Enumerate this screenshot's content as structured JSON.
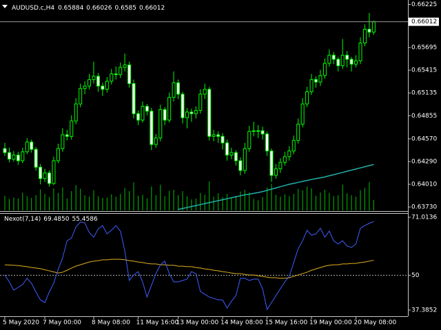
{
  "chart_data": [
    {
      "type": "candlestick",
      "symbol": "AUDUSD.c,H4",
      "categories": [
        "5 May 2020",
        null,
        null,
        null,
        null,
        null,
        null,
        null,
        null,
        "7 May 00:00",
        null,
        null,
        null,
        null,
        null,
        null,
        null,
        null,
        null,
        null,
        "8 May 08:00",
        null,
        null,
        null,
        null,
        null,
        null,
        null,
        null,
        null,
        "11 May 16:00",
        null,
        null,
        null,
        null,
        null,
        null,
        null,
        null,
        "13 May 00:00",
        null,
        null,
        null,
        null,
        null,
        null,
        null,
        null,
        null,
        "14 May 08:00",
        null,
        null,
        null,
        null,
        null,
        null,
        null,
        null,
        null,
        "15 May 16:00",
        null,
        null,
        null,
        null,
        null,
        null,
        null,
        null,
        null,
        "19 May 00:00",
        null,
        null,
        null,
        null,
        null,
        null,
        null,
        null,
        null,
        "20 May 08:00",
        null,
        null,
        null,
        null
      ],
      "candles": [
        [
          0.6445,
          0.6452,
          0.6436,
          0.644
        ],
        [
          0.644,
          0.6446,
          0.6428,
          0.6432
        ],
        [
          0.6432,
          0.6442,
          0.6429,
          0.6437
        ],
        [
          0.6437,
          0.6441,
          0.6425,
          0.643
        ],
        [
          0.643,
          0.6446,
          0.6427,
          0.6441
        ],
        [
          0.6441,
          0.6458,
          0.6438,
          0.6453
        ],
        [
          0.6453,
          0.6456,
          0.644,
          0.6444
        ],
        [
          0.6444,
          0.6447,
          0.6418,
          0.6422
        ],
        [
          0.6422,
          0.6426,
          0.6401,
          0.6408
        ],
        [
          0.6408,
          0.642,
          0.6404,
          0.6415
        ],
        [
          0.6415,
          0.6418,
          0.6398,
          0.6402
        ],
        [
          0.6402,
          0.6435,
          0.64,
          0.643
        ],
        [
          0.643,
          0.6451,
          0.6427,
          0.6445
        ],
        [
          0.6445,
          0.647,
          0.6441,
          0.6462
        ],
        [
          0.6462,
          0.6468,
          0.6455,
          0.646
        ],
        [
          0.646,
          0.6486,
          0.6456,
          0.6479
        ],
        [
          0.6479,
          0.6507,
          0.6475,
          0.65
        ],
        [
          0.65,
          0.6525,
          0.6496,
          0.6519
        ],
        [
          0.6519,
          0.6528,
          0.6512,
          0.6522
        ],
        [
          0.6522,
          0.6537,
          0.6518,
          0.653
        ],
        [
          0.653,
          0.6552,
          0.6525,
          0.6534
        ],
        [
          0.6534,
          0.6538,
          0.6515,
          0.6522
        ],
        [
          0.6522,
          0.6526,
          0.651,
          0.6518
        ],
        [
          0.6518,
          0.6533,
          0.6514,
          0.6528
        ],
        [
          0.6528,
          0.6543,
          0.6524,
          0.6537
        ],
        [
          0.6537,
          0.6546,
          0.653,
          0.6536
        ],
        [
          0.6536,
          0.6551,
          0.6532,
          0.6545
        ],
        [
          0.6545,
          0.6562,
          0.654,
          0.6548
        ],
        [
          0.6548,
          0.6552,
          0.652,
          0.6525
        ],
        [
          0.6525,
          0.653,
          0.6482,
          0.6488
        ],
        [
          0.6488,
          0.6492,
          0.6474,
          0.648
        ],
        [
          0.648,
          0.6503,
          0.6477,
          0.6497
        ],
        [
          0.6497,
          0.65,
          0.6486,
          0.6491
        ],
        [
          0.6491,
          0.6495,
          0.6443,
          0.645
        ],
        [
          0.645,
          0.6463,
          0.6446,
          0.6458
        ],
        [
          0.6458,
          0.6499,
          0.6454,
          0.6493
        ],
        [
          0.6493,
          0.6496,
          0.6474,
          0.648
        ],
        [
          0.648,
          0.6514,
          0.6477,
          0.6508
        ],
        [
          0.6508,
          0.654,
          0.6503,
          0.6526
        ],
        [
          0.6526,
          0.653,
          0.6506,
          0.6512
        ],
        [
          0.6512,
          0.6515,
          0.6476,
          0.6483
        ],
        [
          0.6483,
          0.6495,
          0.647,
          0.649
        ],
        [
          0.649,
          0.6494,
          0.6478,
          0.6488
        ],
        [
          0.6488,
          0.6497,
          0.6482,
          0.6492
        ],
        [
          0.6492,
          0.6518,
          0.6488,
          0.6512
        ],
        [
          0.6512,
          0.6525,
          0.6506,
          0.6518
        ],
        [
          0.6518,
          0.6521,
          0.6455,
          0.646
        ],
        [
          0.646,
          0.6468,
          0.6454,
          0.6462
        ],
        [
          0.6462,
          0.6466,
          0.6452,
          0.646
        ],
        [
          0.646,
          0.6464,
          0.6444,
          0.6452
        ],
        [
          0.6452,
          0.6456,
          0.643,
          0.6437
        ],
        [
          0.6437,
          0.6446,
          0.6432,
          0.644
        ],
        [
          0.644,
          0.6443,
          0.6424,
          0.643
        ],
        [
          0.643,
          0.6434,
          0.6412,
          0.6418
        ],
        [
          0.6418,
          0.6452,
          0.6414,
          0.6445
        ],
        [
          0.6445,
          0.6473,
          0.6441,
          0.6466
        ],
        [
          0.6466,
          0.6478,
          0.646,
          0.6467
        ],
        [
          0.6467,
          0.6474,
          0.6458,
          0.6467
        ],
        [
          0.6467,
          0.6472,
          0.6456,
          0.6463
        ],
        [
          0.6463,
          0.6466,
          0.6436,
          0.6442
        ],
        [
          0.6442,
          0.6445,
          0.6404,
          0.6412
        ],
        [
          0.6412,
          0.6426,
          0.6408,
          0.642
        ],
        [
          0.642,
          0.6433,
          0.6415,
          0.6428
        ],
        [
          0.6428,
          0.6441,
          0.6424,
          0.6435
        ],
        [
          0.6435,
          0.6448,
          0.643,
          0.6442
        ],
        [
          0.6442,
          0.6461,
          0.6438,
          0.6455
        ],
        [
          0.6455,
          0.6482,
          0.6451,
          0.6475
        ],
        [
          0.6475,
          0.6507,
          0.6471,
          0.65
        ],
        [
          0.65,
          0.6521,
          0.6496,
          0.6515
        ],
        [
          0.6515,
          0.6537,
          0.6511,
          0.653
        ],
        [
          0.653,
          0.6534,
          0.652,
          0.6527
        ],
        [
          0.6527,
          0.6542,
          0.6522,
          0.6535
        ],
        [
          0.6535,
          0.6556,
          0.6531,
          0.655
        ],
        [
          0.655,
          0.6567,
          0.6546,
          0.656
        ],
        [
          0.656,
          0.6564,
          0.6549,
          0.6555
        ],
        [
          0.6555,
          0.6558,
          0.654,
          0.6547
        ],
        [
          0.6547,
          0.658,
          0.6543,
          0.656
        ],
        [
          0.656,
          0.6565,
          0.6545,
          0.6555
        ],
        [
          0.6555,
          0.6558,
          0.654,
          0.6549
        ],
        [
          0.6549,
          0.656,
          0.6545,
          0.6553
        ],
        [
          0.6553,
          0.6582,
          0.6549,
          0.6575
        ],
        [
          0.6575,
          0.6598,
          0.6571,
          0.6592
        ],
        [
          0.6592,
          0.6612,
          0.6582,
          0.65884
        ],
        [
          0.65884,
          0.66026,
          0.6585,
          0.66012
        ]
      ],
      "volumes": [
        3200,
        2500,
        2800,
        2600,
        3900,
        3100,
        2700,
        3300,
        4600,
        3600,
        2900,
        4800,
        3800,
        5000,
        2600,
        4200,
        5500,
        4700,
        3300,
        3000,
        4400,
        3100,
        2700,
        2800,
        3500,
        3000,
        3600,
        4900,
        4200,
        6100,
        3200,
        3400,
        2600,
        5200,
        3300,
        5600,
        3100,
        4300,
        4500,
        3300,
        4200,
        3100,
        2400,
        2600,
        3800,
        3400,
        6300,
        3000,
        3700,
        2900,
        3600,
        2800,
        3200,
        4100,
        4500,
        3900,
        2500,
        2200,
        2900,
        5000,
        5800,
        3400,
        3000,
        3500,
        3100,
        3600,
        4700,
        4400,
        5200,
        4800,
        3200,
        3900,
        4500,
        3800,
        3100,
        3300,
        5600,
        3700,
        3300,
        3000,
        4400,
        4900,
        6200,
        2300
      ],
      "series": [
        {
          "color": "#20b2aa",
          "values": [
            null,
            null,
            null,
            null,
            null,
            null,
            null,
            null,
            null,
            null,
            null,
            null,
            null,
            null,
            null,
            null,
            null,
            null,
            null,
            null,
            null,
            null,
            null,
            null,
            null,
            null,
            null,
            null,
            null,
            null,
            null,
            null,
            null,
            null,
            null,
            null,
            null,
            null,
            null,
            0.637,
            0.63712,
            0.63724,
            0.63736,
            0.63748,
            0.6376,
            0.63772,
            0.63784,
            0.63796,
            0.63808,
            0.6382,
            0.63832,
            0.63844,
            0.63856,
            0.63868,
            0.6388,
            0.63888,
            0.63898,
            0.63908,
            0.6392,
            0.63935,
            0.6395,
            0.63965,
            0.6398,
            0.63995,
            0.6401,
            0.64021,
            0.64033,
            0.64045,
            0.64057,
            0.64069,
            0.6408,
            0.6409,
            0.641,
            0.64115,
            0.64128,
            0.64142,
            0.64156,
            0.6417,
            0.64184,
            0.64198,
            0.64212,
            0.64226,
            0.6424,
            0.64254
          ]
        }
      ],
      "up_color": "#000000",
      "down_color": "#ffffff",
      "wick_color": "#00ff00",
      "volume_color": "#00c000",
      "ylim": [
        0.6368,
        0.6628
      ],
      "yticks": [
        0.66225,
        0.65695,
        0.65415,
        0.65135,
        0.64855,
        {
          "value": 0.6457,
          "label": "0.64570"
        },
        {
          "value": 0.6429,
          "label": "0.64290"
        },
        {
          "value": 0.6401,
          "label": "0.64010"
        },
        {
          "value": 0.6373,
          "label": "0.63730"
        }
      ]
    },
    {
      "type": "line",
      "title": "Nexot(7,14)",
      "value_labels": [
        "69.4850",
        "55.4586"
      ],
      "series": [
        {
          "color": "#3f5fff",
          "values": [
            50.1,
            47.6,
            44.6,
            45.6,
            46.6,
            48.9,
            47.1,
            43.9,
            41.1,
            40.1,
            43.9,
            47.1,
            52.1,
            56.3,
            62.5,
            63.5,
            67.5,
            69.3,
            69.0,
            65.5,
            63.8,
            66.8,
            68.0,
            65.0,
            66.3,
            68.0,
            66.0,
            58.8,
            48.1,
            50.1,
            51.3,
            47.6,
            42.1,
            46.4,
            50.6,
            53.8,
            55.1,
            50.6,
            47.6,
            47.6,
            48.1,
            48.6,
            51.3,
            50.6,
            44.1,
            43.1,
            42.1,
            41.6,
            41.1,
            41.1,
            38.1,
            40.6,
            42.6,
            48.9,
            48.9,
            48.1,
            48.6,
            48.6,
            45.1,
            37.6,
            40.1,
            42.6,
            45.1,
            47.6,
            49.6,
            54.6,
            59.6,
            62.5,
            66.3,
            64.5,
            65.0,
            67.0,
            63.8,
            66.0,
            62.5,
            61.3,
            62.5,
            60.6,
            60.1,
            61.3,
            67.0,
            68.0,
            68.8,
            69.485
          ]
        },
        {
          "color": "#e0b020",
          "values": [
            53.8,
            53.7,
            53.6,
            53.5,
            53.3,
            53.1,
            52.8,
            52.6,
            52.4,
            52.0,
            51.6,
            51.2,
            50.8,
            51.1,
            51.8,
            52.6,
            53.3,
            53.8,
            54.3,
            54.8,
            55.1,
            55.3,
            55.6,
            55.6,
            55.8,
            55.8,
            55.8,
            55.6,
            55.3,
            55.1,
            54.8,
            54.6,
            54.3,
            54.1,
            54.1,
            53.8,
            53.8,
            53.6,
            53.6,
            53.3,
            53.3,
            53.1,
            53.1,
            52.8,
            52.6,
            52.3,
            52.1,
            51.8,
            51.6,
            51.3,
            51.1,
            50.8,
            50.6,
            50.6,
            50.3,
            50.1,
            50.1,
            49.8,
            49.6,
            49.3,
            49.1,
            49.1,
            48.9,
            48.9,
            49.1,
            49.6,
            50.1,
            50.6,
            51.1,
            51.8,
            52.3,
            52.8,
            53.3,
            53.6,
            53.8,
            53.8,
            54.1,
            54.1,
            54.3,
            54.3,
            54.6,
            54.8,
            55.1,
            55.4586
          ]
        }
      ],
      "ylim": [
        35.14,
        72.51
      ],
      "yticks": [
        71.0136,
        50,
        37.3852
      ]
    }
  ]
}
